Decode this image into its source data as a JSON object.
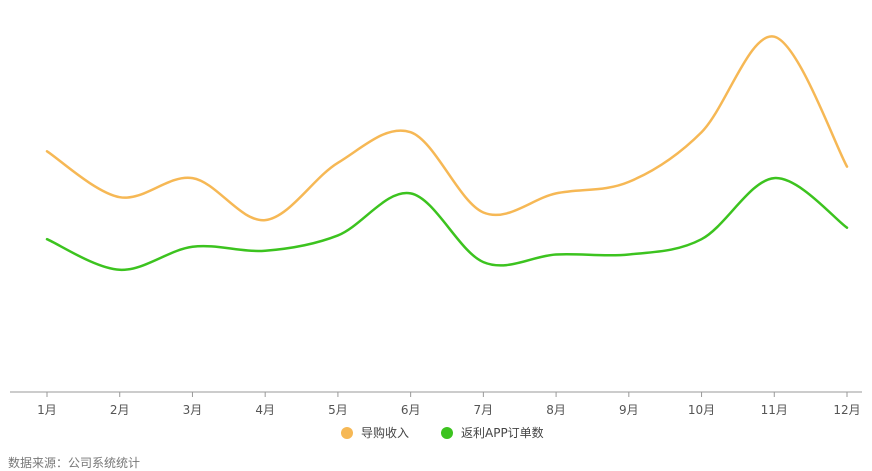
{
  "chart_data": {
    "type": "line",
    "categories": [
      "1月",
      "2月",
      "3月",
      "4月",
      "5月",
      "6月",
      "7月",
      "8月",
      "9月",
      "10月",
      "11月",
      "12月"
    ],
    "series": [
      {
        "name": "导购收入",
        "color": "#F6B855",
        "values": [
          63,
          51,
          56,
          45,
          60,
          68,
          47,
          52,
          55,
          68,
          93,
          59
        ]
      },
      {
        "name": "返利APP订单数",
        "color": "#3CC31F",
        "values": [
          40,
          32,
          38,
          37,
          41,
          52,
          34,
          36,
          36,
          40,
          56,
          43
        ]
      }
    ],
    "ylim": [
      0,
      100
    ],
    "grid": false,
    "legend": "bottom-center"
  },
  "footer": {
    "source": "数据来源：公司系统统计"
  }
}
